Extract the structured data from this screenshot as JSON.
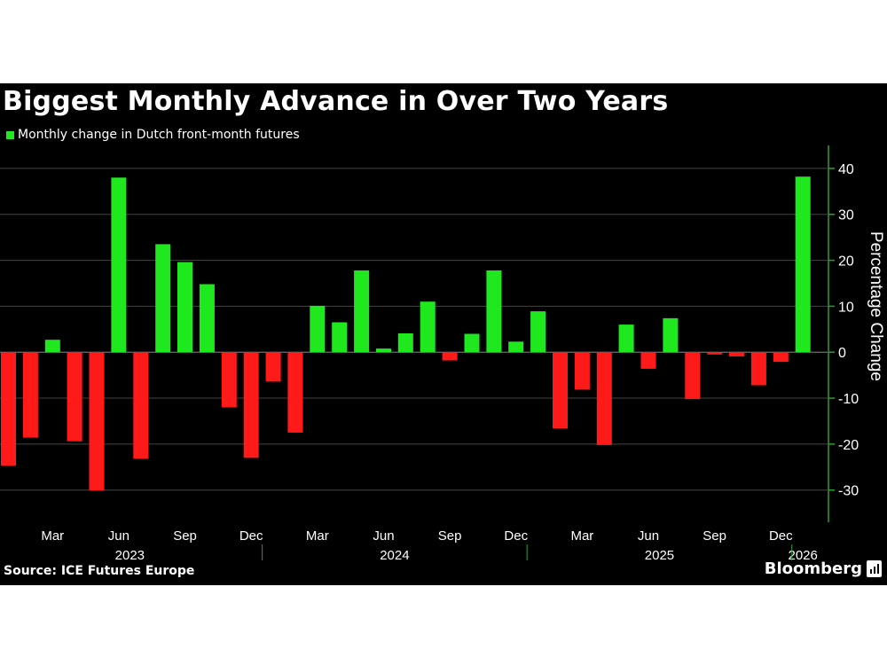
{
  "title": "Biggest Monthly Advance in Over Two Years",
  "legend": {
    "label": "Monthly change in Dutch front-month futures",
    "color": "#1fe81f"
  },
  "source": "Source: ICE Futures Europe",
  "brand": "Bloomberg",
  "colors": {
    "positive": "#1fe81f",
    "negative": "#ff1a1a",
    "axis": "#2f9e2f",
    "grid": "#444444",
    "text": "#ffffff"
  },
  "chart_data": {
    "type": "bar",
    "title": "Biggest Monthly Advance in Over Two Years",
    "ylabel": "Percentage Change",
    "xlabel": "",
    "ylim": [
      -37,
      45
    ],
    "yticks": [
      40,
      30,
      20,
      10,
      0,
      -10,
      -20,
      -30
    ],
    "grid": true,
    "legend_position": "top-left",
    "y_axis_side": "right",
    "categories": [
      "Jan 2023",
      "Feb 2023",
      "Mar 2023",
      "Apr 2023",
      "May 2023",
      "Jun 2023",
      "Jul 2023",
      "Aug 2023",
      "Sep 2023",
      "Oct 2023",
      "Nov 2023",
      "Dec 2023",
      "Jan 2024",
      "Feb 2024",
      "Mar 2024",
      "Apr 2024",
      "May 2024",
      "Jun 2024",
      "Jul 2024",
      "Aug 2024",
      "Sep 2024",
      "Oct 2024",
      "Nov 2024",
      "Dec 2024",
      "Jan 2025",
      "Feb 2025",
      "Mar 2025",
      "Apr 2025",
      "May 2025",
      "Jun 2025",
      "Jul 2025",
      "Aug 2025",
      "Sep 2025",
      "Oct 2025",
      "Nov 2025",
      "Dec 2025",
      "Jan 2026"
    ],
    "series": [
      {
        "name": "Monthly change in Dutch front-month futures",
        "values": [
          -24.7,
          -18.6,
          2.7,
          -19.4,
          -30.1,
          38.0,
          -23.2,
          23.5,
          19.6,
          14.8,
          -12.0,
          -23.0,
          -6.4,
          -17.5,
          10.1,
          6.5,
          17.8,
          0.8,
          4.1,
          11.0,
          -1.8,
          4.0,
          17.8,
          2.3,
          8.9,
          -16.6,
          -8.1,
          -20.2,
          6.0,
          -3.6,
          7.4,
          -10.2,
          -0.5,
          -0.9,
          -7.2,
          -2.1,
          38.2
        ]
      }
    ],
    "x_month_labels": [
      {
        "label": "Mar",
        "index": 2
      },
      {
        "label": "Jun",
        "index": 5
      },
      {
        "label": "Sep",
        "index": 8
      },
      {
        "label": "Dec",
        "index": 11
      },
      {
        "label": "Mar",
        "index": 14
      },
      {
        "label": "Jun",
        "index": 17
      },
      {
        "label": "Sep",
        "index": 20
      },
      {
        "label": "Dec",
        "index": 23
      },
      {
        "label": "Mar",
        "index": 26
      },
      {
        "label": "Jun",
        "index": 29
      },
      {
        "label": "Sep",
        "index": 32
      },
      {
        "label": "Dec",
        "index": 35
      }
    ],
    "x_year_labels": [
      {
        "label": "2023",
        "index": 5.5
      },
      {
        "label": "2024",
        "index": 17.5
      },
      {
        "label": "2025",
        "index": 29.5
      },
      {
        "label": "2026",
        "index": 36
      }
    ],
    "year_boundaries": [
      12,
      24,
      36
    ]
  }
}
